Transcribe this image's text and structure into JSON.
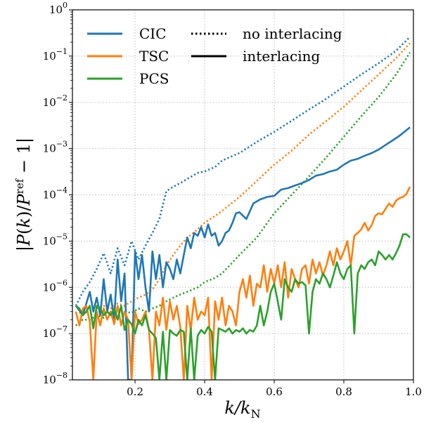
{
  "chart_data": {
    "type": "line",
    "xlabel": "k/k_N",
    "ylabel": "|P(k)/P^ref − 1|",
    "xlim": [
      0.02,
      1.0
    ],
    "ylim": [
      1e-08,
      1.0
    ],
    "yscale": "log",
    "grid": true,
    "legend_placement": "top-left",
    "x_ticks": [
      0.2,
      0.4,
      0.6,
      0.8,
      1.0
    ],
    "x_tick_labels": [
      "0.2",
      "0.4",
      "0.6",
      "0.8",
      "1.0"
    ],
    "y_ticks": [
      1e-08,
      1e-07,
      1e-06,
      1e-05,
      0.0001,
      0.001,
      0.01,
      0.1,
      1
    ],
    "y_tick_labels": [
      {
        "base": "10",
        "exp": "−8"
      },
      {
        "base": "10",
        "exp": "−7"
      },
      {
        "base": "10",
        "exp": "−6"
      },
      {
        "base": "10",
        "exp": "−5"
      },
      {
        "base": "10",
        "exp": "−4"
      },
      {
        "base": "10",
        "exp": "−3"
      },
      {
        "base": "10",
        "exp": "−2"
      },
      {
        "base": "10",
        "exp": "−1"
      },
      {
        "base": "10",
        "exp": "0"
      }
    ],
    "legend_series": [
      {
        "label": "CIC",
        "color": "#1f77b4"
      },
      {
        "label": "TSC",
        "color": "#ff7f0e"
      },
      {
        "label": "PCS",
        "color": "#2ca02c"
      }
    ],
    "legend_styles": [
      {
        "label": "no interlacing",
        "style": "dotted"
      },
      {
        "label": "interlacing",
        "style": "solid"
      }
    ],
    "series": [
      {
        "scheme": "CIC",
        "style": "dotted",
        "color": "#1f77b4",
        "x": [
          0.03,
          0.05,
          0.07,
          0.09,
          0.11,
          0.13,
          0.15,
          0.17,
          0.19,
          0.21,
          0.23,
          0.25,
          0.27,
          0.29,
          0.31,
          0.33,
          0.35,
          0.38,
          0.4,
          0.43,
          0.45,
          0.5,
          0.55,
          0.6,
          0.65,
          0.7,
          0.75,
          0.8,
          0.85,
          0.9,
          0.95,
          0.99
        ],
        "y": [
          4e-07,
          8e-07,
          1.3e-06,
          2.5e-06,
          5.5e-06,
          2e-06,
          7e-06,
          3e-06,
          1e-05,
          4e-06,
          8e-06,
          1.5e-05,
          3e-05,
          0.00012,
          0.00015,
          0.00018,
          0.00022,
          0.0003,
          0.00032,
          0.0004,
          0.00055,
          0.0008,
          0.0014,
          0.0023,
          0.004,
          0.007,
          0.012,
          0.022,
          0.04,
          0.07,
          0.13,
          0.26
        ]
      },
      {
        "scheme": "TSC",
        "style": "dotted",
        "color": "#ff7f0e",
        "x": [
          0.03,
          0.05,
          0.07,
          0.09,
          0.11,
          0.13,
          0.15,
          0.17,
          0.19,
          0.21,
          0.23,
          0.25,
          0.27,
          0.29,
          0.31,
          0.33,
          0.35,
          0.38,
          0.4,
          0.43,
          0.45,
          0.5,
          0.55,
          0.6,
          0.65,
          0.7,
          0.75,
          0.8,
          0.85,
          0.9,
          0.95,
          0.99
        ],
        "y": [
          2.5e-07,
          3e-07,
          2.8e-07,
          3.5e-07,
          4e-07,
          3.5e-07,
          4.5e-07,
          4e-07,
          5e-07,
          6e-07,
          7e-07,
          9e-07,
          1.5e-06,
          3e-06,
          5e-06,
          8e-06,
          1.2e-05,
          1.8e-05,
          2.5e-05,
          3.5e-05,
          4.5e-05,
          9e-05,
          0.0002,
          0.00045,
          0.0009,
          0.002,
          0.004,
          0.008,
          0.018,
          0.04,
          0.09,
          0.19
        ]
      },
      {
        "scheme": "PCS",
        "style": "dotted",
        "color": "#2ca02c",
        "x": [
          0.03,
          0.05,
          0.07,
          0.09,
          0.11,
          0.13,
          0.15,
          0.17,
          0.19,
          0.21,
          0.23,
          0.25,
          0.27,
          0.29,
          0.31,
          0.33,
          0.35,
          0.38,
          0.4,
          0.43,
          0.45,
          0.5,
          0.55,
          0.6,
          0.65,
          0.7,
          0.75,
          0.8,
          0.85,
          0.9,
          0.95,
          0.99
        ],
        "y": [
          1.5e-07,
          2e-07,
          2e-07,
          2.5e-07,
          2.2e-07,
          3e-07,
          2.5e-07,
          3e-07,
          2.8e-07,
          3.5e-07,
          3e-07,
          3.5e-07,
          4e-07,
          5e-07,
          6e-07,
          7e-07,
          8e-07,
          1e-06,
          1.3e-06,
          1.6e-06,
          2e-06,
          5e-06,
          1.2e-05,
          4e-05,
          0.0001,
          0.00025,
          0.00065,
          0.0018,
          0.005,
          0.013,
          0.04,
          0.12
        ]
      },
      {
        "scheme": "CIC",
        "style": "solid",
        "color": "#1f77b4",
        "x": [
          0.03,
          0.05,
          0.07,
          0.08,
          0.09,
          0.1,
          0.11,
          0.12,
          0.13,
          0.14,
          0.15,
          0.16,
          0.17,
          0.18,
          0.185,
          0.19,
          0.2,
          0.21,
          0.22,
          0.23,
          0.24,
          0.25,
          0.26,
          0.27,
          0.28,
          0.29,
          0.3,
          0.31,
          0.32,
          0.33,
          0.34,
          0.35,
          0.36,
          0.37,
          0.38,
          0.39,
          0.4,
          0.41,
          0.42,
          0.43,
          0.44,
          0.45,
          0.46,
          0.47,
          0.48,
          0.49,
          0.5,
          0.52,
          0.54,
          0.56,
          0.58,
          0.6,
          0.62,
          0.64,
          0.66,
          0.68,
          0.7,
          0.72,
          0.74,
          0.76,
          0.78,
          0.8,
          0.82,
          0.84,
          0.86,
          0.88,
          0.9,
          0.92,
          0.94,
          0.96,
          0.98,
          0.99
        ],
        "y": [
          4e-07,
          2.5e-07,
          8e-07,
          3e-07,
          6e-07,
          2.5e-07,
          1.5e-06,
          3e-07,
          7e-07,
          2e-07,
          4e-06,
          5e-07,
          2e-06,
          1e-08,
          1e-08,
          1e-08,
          6e-06,
          1.5e-06,
          5e-06,
          1e-06,
          3e-07,
          6e-06,
          1.5e-06,
          5e-06,
          1e-06,
          3.5e-06,
          2.5e-06,
          1.5e-06,
          4e-06,
          2e-06,
          5e-06,
          1.2e-05,
          7e-06,
          1.5e-05,
          1.3e-05,
          2e-05,
          1.2e-05,
          2.3e-05,
          1.3e-05,
          1.5e-05,
          8e-06,
          1e-05,
          1.5e-05,
          1.7e-05,
          2.5e-05,
          4e-05,
          4.2e-05,
          3e-05,
          6.5e-05,
          8e-05,
          9e-05,
          9.5e-05,
          0.00013,
          0.00014,
          0.00016,
          0.00018,
          0.00021,
          0.00026,
          0.00028,
          0.00032,
          0.00035,
          0.00045,
          0.00055,
          0.0006,
          0.0007,
          0.0008,
          0.00095,
          0.0012,
          0.0015,
          0.0019,
          0.0025,
          0.0029
        ]
      },
      {
        "scheme": "TSC",
        "style": "solid",
        "color": "#ff7f0e",
        "x": [
          0.03,
          0.04,
          0.05,
          0.06,
          0.07,
          0.08,
          0.09,
          0.1,
          0.11,
          0.12,
          0.13,
          0.14,
          0.15,
          0.16,
          0.17,
          0.18,
          0.19,
          0.2,
          0.21,
          0.22,
          0.23,
          0.24,
          0.25,
          0.26,
          0.27,
          0.28,
          0.29,
          0.3,
          0.31,
          0.32,
          0.33,
          0.34,
          0.35,
          0.36,
          0.37,
          0.38,
          0.39,
          0.4,
          0.41,
          0.42,
          0.43,
          0.44,
          0.45,
          0.46,
          0.47,
          0.48,
          0.49,
          0.5,
          0.51,
          0.52,
          0.53,
          0.54,
          0.55,
          0.56,
          0.57,
          0.58,
          0.59,
          0.6,
          0.61,
          0.62,
          0.63,
          0.64,
          0.65,
          0.66,
          0.67,
          0.68,
          0.69,
          0.7,
          0.71,
          0.72,
          0.73,
          0.74,
          0.75,
          0.76,
          0.77,
          0.78,
          0.79,
          0.8,
          0.81,
          0.82,
          0.83,
          0.84,
          0.85,
          0.86,
          0.87,
          0.88,
          0.89,
          0.9,
          0.91,
          0.92,
          0.93,
          0.94,
          0.95,
          0.96,
          0.97,
          0.98,
          0.99
        ],
        "y": [
          3e-07,
          1.5e-07,
          3.5e-07,
          4e-07,
          1.8e-07,
          1e-08,
          3e-07,
          1.5e-07,
          3.5e-07,
          2e-07,
          3e-07,
          1.6e-07,
          4e-07,
          1.5e-07,
          3e-07,
          2e-07,
          1e-08,
          3e-07,
          1.6e-07,
          2e-07,
          3e-07,
          1.2e-07,
          1e-08,
          3e-07,
          1.5e-07,
          6e-07,
          1.2e-07,
          5e-07,
          2e-07,
          4e-07,
          1.4e-07,
          1e-08,
          4e-07,
          1.2e-07,
          6e-07,
          2e-07,
          3e-07,
          2.5e-07,
          6e-07,
          1e-08,
          5e-07,
          2e-07,
          6e-07,
          1.5e-07,
          4e-07,
          3e-07,
          1.5e-07,
          8e-07,
          1.5e-06,
          6e-07,
          1.8e-06,
          4e-07,
          1.2e-06,
          1e-06,
          3e-06,
          8e-07,
          2.5e-06,
          1.2e-06,
          3e-06,
          1e-06,
          3.5e-06,
          6e-07,
          2.5e-06,
          1.5e-06,
          1e-06,
          2.5e-06,
          3e-06,
          1.2e-06,
          4e-06,
          2e-06,
          3.5e-06,
          1.8e-06,
          3e-06,
          6e-06,
          3e-06,
          7e-06,
          4e-06,
          6e-06,
          1e-05,
          3e-06,
          1.3e-05,
          1.5e-05,
          1.8e-05,
          2.5e-05,
          1.7e-05,
          2.2e-05,
          3.5e-05,
          4e-05,
          3.8e-05,
          5e-05,
          6.5e-05,
          5.5e-05,
          7.5e-05,
          8.5e-05,
          9e-05,
          0.000105,
          0.00015
        ]
      },
      {
        "scheme": "PCS",
        "style": "solid",
        "color": "#2ca02c",
        "x": [
          0.03,
          0.04,
          0.05,
          0.06,
          0.07,
          0.08,
          0.09,
          0.1,
          0.11,
          0.12,
          0.13,
          0.14,
          0.15,
          0.16,
          0.17,
          0.18,
          0.19,
          0.2,
          0.21,
          0.22,
          0.23,
          0.24,
          0.25,
          0.26,
          0.27,
          0.28,
          0.29,
          0.3,
          0.31,
          0.32,
          0.33,
          0.34,
          0.35,
          0.36,
          0.37,
          0.38,
          0.39,
          0.4,
          0.41,
          0.42,
          0.43,
          0.44,
          0.45,
          0.46,
          0.47,
          0.48,
          0.49,
          0.5,
          0.51,
          0.52,
          0.53,
          0.54,
          0.55,
          0.56,
          0.57,
          0.58,
          0.59,
          0.6,
          0.61,
          0.62,
          0.63,
          0.64,
          0.65,
          0.66,
          0.67,
          0.68,
          0.69,
          0.7,
          0.71,
          0.72,
          0.73,
          0.74,
          0.75,
          0.76,
          0.77,
          0.78,
          0.79,
          0.8,
          0.81,
          0.82,
          0.83,
          0.84,
          0.85,
          0.86,
          0.87,
          0.88,
          0.89,
          0.9,
          0.91,
          0.92,
          0.93,
          0.94,
          0.95,
          0.96,
          0.97,
          0.98,
          0.99
        ],
        "y": [
          4e-07,
          3.5e-07,
          2.5e-07,
          3e-07,
          4e-07,
          1.3e-07,
          4e-07,
          3.5e-07,
          2.5e-07,
          3e-07,
          2.5e-07,
          3.5e-07,
          2e-07,
          4e-07,
          1.2e-07,
          2e-07,
          1.6e-07,
          1e-07,
          2e-07,
          1.5e-07,
          2.5e-07,
          1.2e-07,
          1e-07,
          8e-08,
          1e-08,
          1.1e-07,
          1e-08,
          1.2e-07,
          1e-07,
          9e-08,
          1.2e-07,
          1.1e-07,
          1e-08,
          1.3e-07,
          1e-08,
          9e-08,
          1.2e-07,
          1e-07,
          1.4e-07,
          1.1e-07,
          1e-08,
          1.3e-07,
          1.2e-07,
          1.1e-07,
          1.3e-07,
          1e-07,
          1.2e-07,
          1.1e-07,
          1.3e-07,
          1e-07,
          1.2e-07,
          1.1e-07,
          1.5e-07,
          4e-07,
          1.5e-07,
          3e-07,
          8e-07,
          1.2e-06,
          5e-07,
          2e-07,
          1.5e-06,
          1e-06,
          8e-07,
          1.5e-06,
          1.2e-06,
          1.3e-06,
          1.1e-06,
          1e-07,
          8e-07,
          1.5e-06,
          1.2e-06,
          2e-06,
          1.5e-06,
          1e-06,
          1.8e-06,
          3.5e-06,
          2e-06,
          1.5e-06,
          2.5e-06,
          3e-06,
          1e-07,
          2e-06,
          3e-06,
          2.5e-06,
          3.5e-06,
          4e-06,
          3e-06,
          6e-06,
          5e-06,
          4e-06,
          5e-06,
          4e-06,
          5.5e-06,
          8e-06,
          1.4e-05,
          1.4e-05,
          1.2e-05
        ]
      }
    ]
  }
}
